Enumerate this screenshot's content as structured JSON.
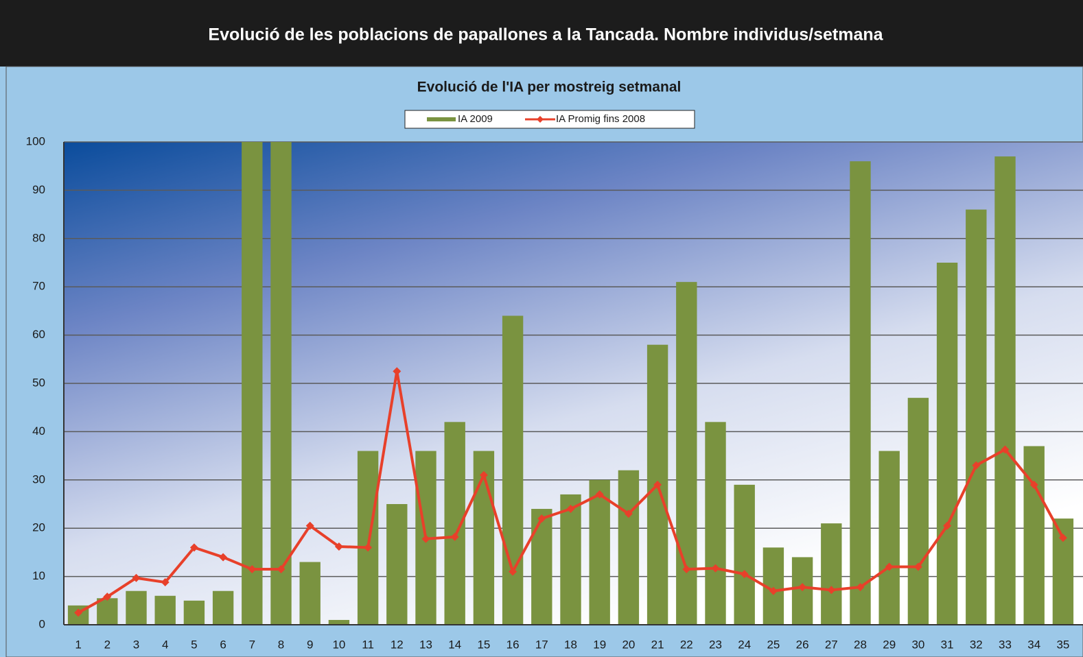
{
  "header": {
    "title": "Evolució de les poblacions de papallones a la Tancada. Nombre individus/setmana"
  },
  "chart_data": {
    "type": "bar",
    "title": "Evolució de l'IA per mostreig setmanal",
    "categories": [
      "1",
      "2",
      "3",
      "4",
      "5",
      "6",
      "7",
      "8",
      "9",
      "10",
      "11",
      "12",
      "13",
      "14",
      "15",
      "16",
      "17",
      "18",
      "19",
      "20",
      "21",
      "22",
      "23",
      "24",
      "25",
      "26",
      "27",
      "28",
      "29",
      "30",
      "31",
      "32",
      "33",
      "34",
      "35"
    ],
    "series": [
      {
        "name": "IA 2009",
        "type": "bar",
        "color": "#7a9340",
        "values": [
          4,
          5.5,
          7,
          6,
          5,
          7,
          100,
          100,
          13,
          1,
          36,
          25,
          36,
          42,
          36,
          64,
          24,
          27,
          30,
          32,
          58,
          71,
          42,
          29,
          16,
          14,
          21,
          96,
          36,
          47,
          75,
          86,
          97,
          37,
          22
        ]
      },
      {
        "name": "IA Promig fins 2008",
        "type": "line",
        "color": "#e8402a",
        "values": [
          2.5,
          5.8,
          9.7,
          8.8,
          16,
          14,
          11.5,
          11.5,
          20.5,
          16.2,
          16,
          52.5,
          17.8,
          18.2,
          31,
          11,
          22,
          24,
          27,
          23,
          29,
          11.5,
          11.7,
          10.5,
          7,
          7.8,
          7.2,
          7.8,
          12,
          12,
          20.5,
          33,
          36.3,
          29,
          18
        ]
      }
    ],
    "ylim": [
      0,
      100
    ],
    "yticks": [
      0,
      10,
      20,
      30,
      40,
      50,
      60,
      70,
      80,
      90,
      100
    ],
    "grid": true,
    "legend": "top"
  }
}
